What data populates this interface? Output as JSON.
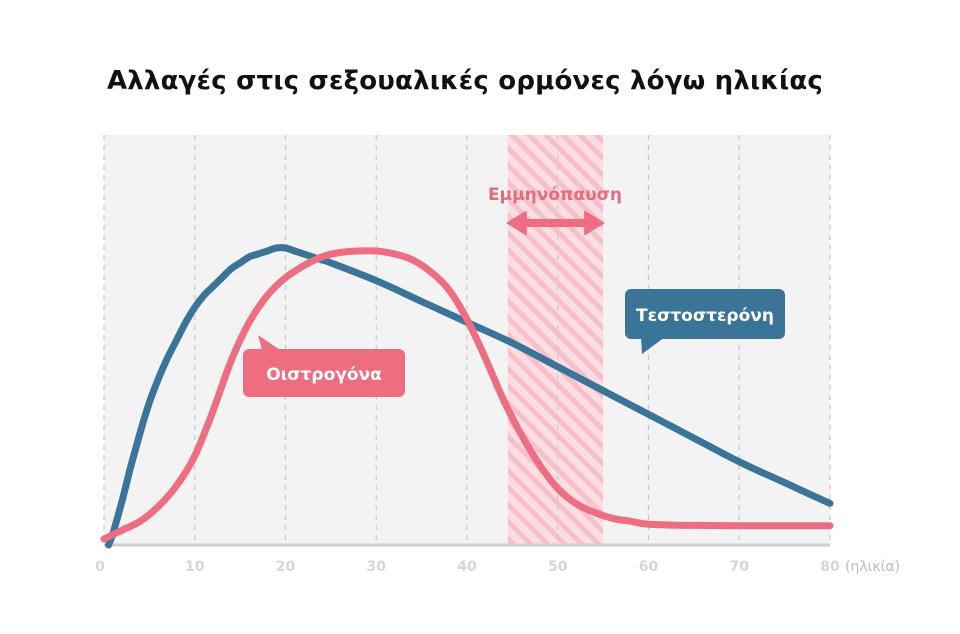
{
  "chart_data": {
    "type": "line",
    "title": "Αλλαγές στις σεξουαλικές ορμόνες λόγω ηλικίας",
    "xlabel": "(ηλικία)",
    "ylabel": "",
    "xlim": [
      0,
      80
    ],
    "ylim": [
      0,
      100
    ],
    "x_ticks": [
      0,
      10,
      20,
      30,
      40,
      50,
      60,
      70,
      80
    ],
    "grid": true,
    "y_axis_labels": false,
    "series": [
      {
        "name": "Τεστοστερόνη",
        "color": "#3a7499",
        "x": [
          0.5,
          1,
          2,
          3,
          4,
          5,
          6,
          7,
          8,
          9,
          10,
          11,
          12,
          13,
          14,
          15,
          16,
          17,
          18,
          19,
          20,
          21,
          22,
          23,
          24,
          25,
          30,
          35,
          40,
          45,
          50,
          55,
          60,
          65,
          70,
          75,
          80
        ],
        "values": [
          0,
          4,
          15,
          27,
          38,
          48,
          56,
          63,
          69,
          75,
          80,
          84,
          87,
          90,
          93,
          95,
          97,
          98,
          99,
          100,
          100,
          99,
          98,
          97,
          96,
          95,
          89,
          82,
          75,
          68,
          60,
          52,
          44,
          36,
          28,
          21,
          14
        ]
      },
      {
        "name": "Οιστρογόνα",
        "color": "#ec6e80",
        "x": [
          0,
          2,
          4,
          6,
          8,
          10,
          12,
          14,
          16,
          18,
          20,
          22,
          24,
          26,
          28,
          30,
          32,
          34,
          36,
          38,
          40,
          42,
          44,
          46,
          48,
          50,
          52,
          54,
          56,
          58,
          60,
          65,
          70,
          75,
          80
        ],
        "values": [
          2,
          5,
          8,
          13,
          20,
          30,
          45,
          62,
          75,
          84,
          90,
          94,
          97,
          98.5,
          99,
          99,
          98,
          96,
          92,
          86,
          76,
          63,
          49,
          37,
          27,
          19,
          14,
          11,
          9,
          8,
          7,
          6.6,
          6.5,
          6.5,
          6.5
        ]
      }
    ],
    "annotations": {
      "menopause": {
        "label": "Εμμηνόπαυση",
        "x_start": 44.5,
        "x_end": 55,
        "fill": "#f9c9d0",
        "arrow_color": "#ec6e80"
      },
      "testosterone_label": "Τεστοστερόνη",
      "estrogen_label": "Οιστρογόνα"
    }
  }
}
